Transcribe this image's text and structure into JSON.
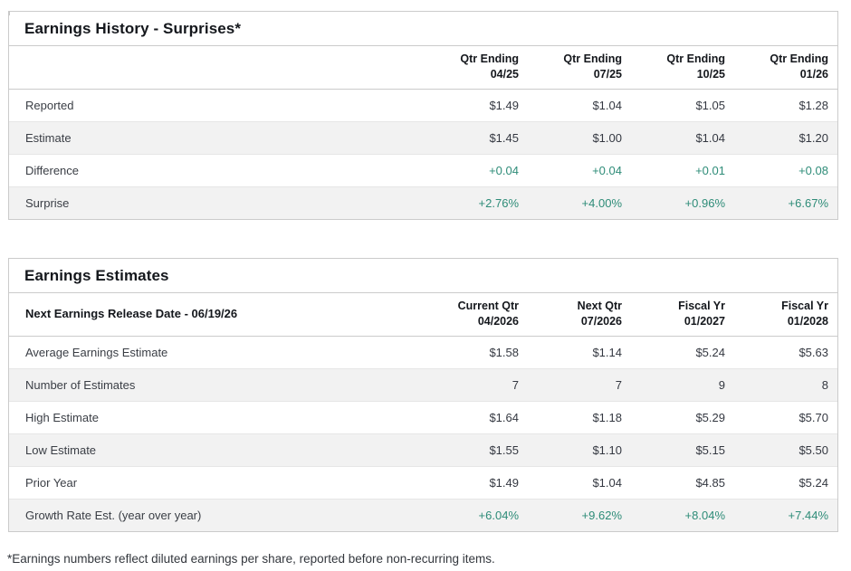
{
  "page": {
    "footnote": "*Earnings numbers reflect diluted earnings per share, reported before non-recurring items.",
    "colors": {
      "positive_value": "#2e8c78",
      "row_stripe": "#f2f2f2",
      "table_border": "#cbcbcb",
      "heading_text": "#14171c"
    }
  },
  "earnings_history": {
    "title": "Earnings History - Surprises*",
    "columns": [
      {
        "line1": "Qtr Ending",
        "line2": "04/25"
      },
      {
        "line1": "Qtr Ending",
        "line2": "07/25"
      },
      {
        "line1": "Qtr Ending",
        "line2": "10/25"
      },
      {
        "line1": "Qtr Ending",
        "line2": "01/26"
      }
    ],
    "rows": [
      {
        "label": "Reported",
        "values": [
          "$1.49",
          "$1.04",
          "$1.05",
          "$1.28"
        ]
      },
      {
        "label": "Estimate",
        "values": [
          "$1.45",
          "$1.00",
          "$1.04",
          "$1.20"
        ]
      },
      {
        "label": "Difference",
        "values": [
          "+0.04",
          "+0.04",
          "+0.01",
          "+0.08"
        ]
      },
      {
        "label": "Surprise",
        "values": [
          "+2.76%",
          "+4.00%",
          "+0.96%",
          "+6.67%"
        ]
      }
    ]
  },
  "earnings_estimates": {
    "title": "Earnings Estimates",
    "release_label": "Next Earnings Release Date - 06/19/26",
    "columns": [
      {
        "line1": "Current Qtr",
        "line2": "04/2026"
      },
      {
        "line1": "Next Qtr",
        "line2": "07/2026"
      },
      {
        "line1": "Fiscal Yr",
        "line2": "01/2027"
      },
      {
        "line1": "Fiscal Yr",
        "line2": "01/2028"
      }
    ],
    "rows": [
      {
        "label": "Average Earnings Estimate",
        "values": [
          "$1.58",
          "$1.14",
          "$5.24",
          "$5.63"
        ]
      },
      {
        "label": "Number of Estimates",
        "values": [
          "7",
          "7",
          "9",
          "8"
        ]
      },
      {
        "label": "High Estimate",
        "values": [
          "$1.64",
          "$1.18",
          "$5.29",
          "$5.70"
        ]
      },
      {
        "label": "Low Estimate",
        "values": [
          "$1.55",
          "$1.10",
          "$5.15",
          "$5.50"
        ]
      },
      {
        "label": "Prior Year",
        "values": [
          "$1.49",
          "$1.04",
          "$4.85",
          "$5.24"
        ]
      },
      {
        "label": "Growth Rate Est. (year over year)",
        "values": [
          "+6.04%",
          "+9.62%",
          "+8.04%",
          "+7.44%"
        ]
      }
    ]
  }
}
